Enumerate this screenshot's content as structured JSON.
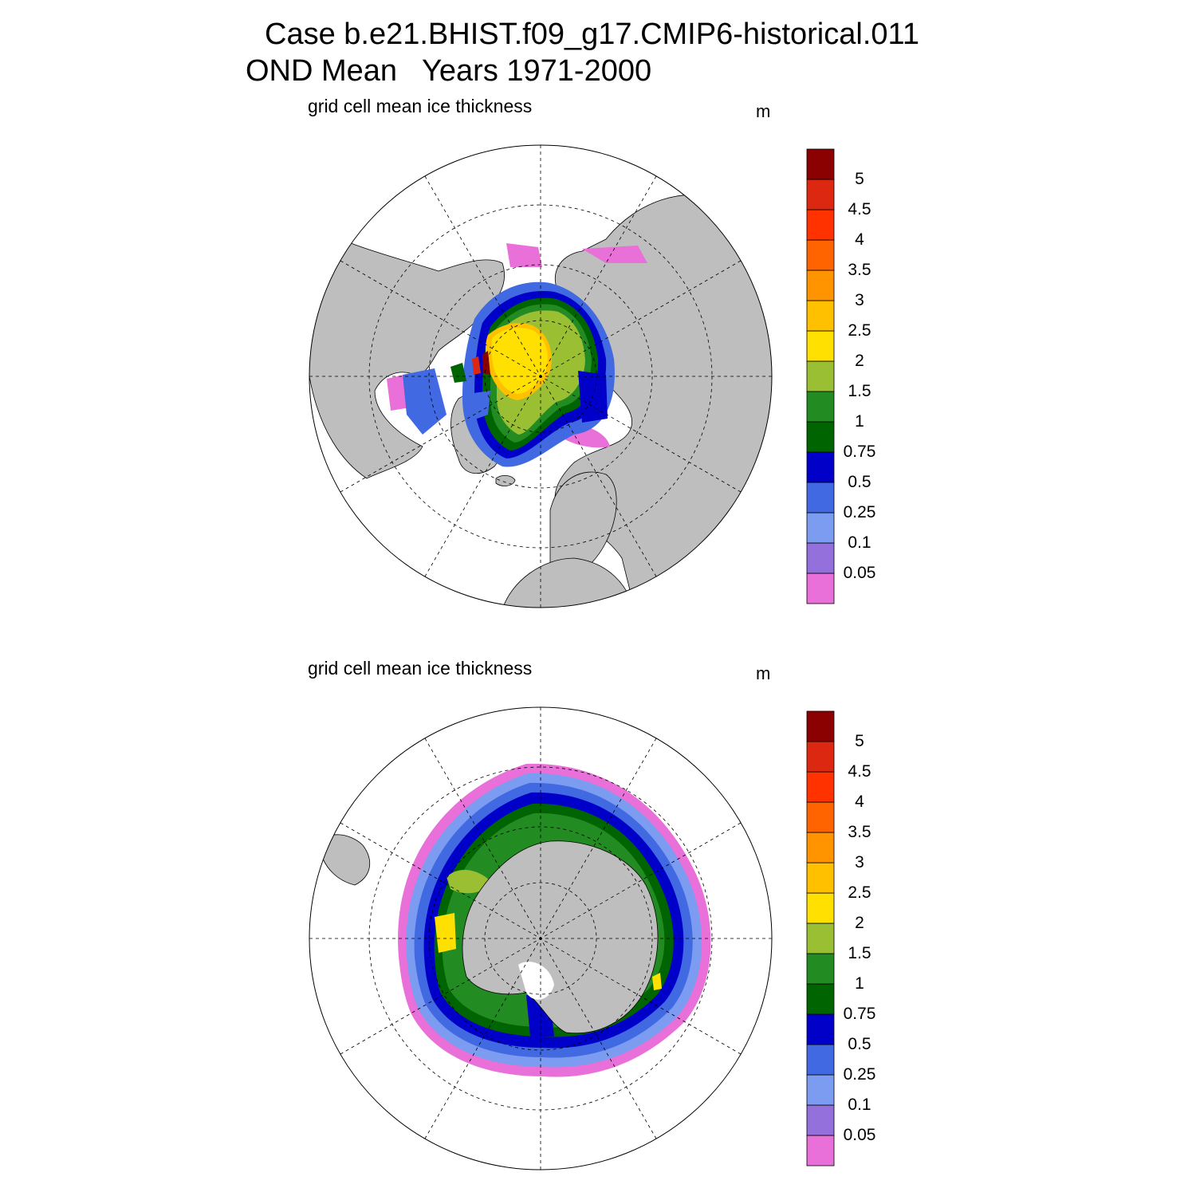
{
  "header": {
    "title_line1": "Case b.e21.BHIST.f09_g17.CMIP6-historical.011",
    "title_line2": "OND Mean   Years 1971-2000"
  },
  "panels": [
    {
      "name": "northern-hemisphere",
      "label": "grid cell mean ice thickness",
      "unit": "m"
    },
    {
      "name": "southern-hemisphere",
      "label": "grid cell mean ice thickness",
      "unit": "m"
    }
  ],
  "colorbar": {
    "ticks": [
      "0.05",
      "0.1",
      "0.25",
      "0.5",
      "0.75",
      "1",
      "1.5",
      "2",
      "2.5",
      "3",
      "3.5",
      "4",
      "4.5",
      "5"
    ],
    "colors": [
      "#e870d8",
      "#9370db",
      "#7b9cf0",
      "#4169e1",
      "#0000c8",
      "#006400",
      "#228b22",
      "#9abf32",
      "#ffe000",
      "#ffc000",
      "#ff9400",
      "#ff6400",
      "#ff3200",
      "#dc2810",
      "#8b0000"
    ]
  },
  "map_colors": {
    "land": "#bebebe",
    "ocean": "#ffffff",
    "grid": "#000000"
  }
}
